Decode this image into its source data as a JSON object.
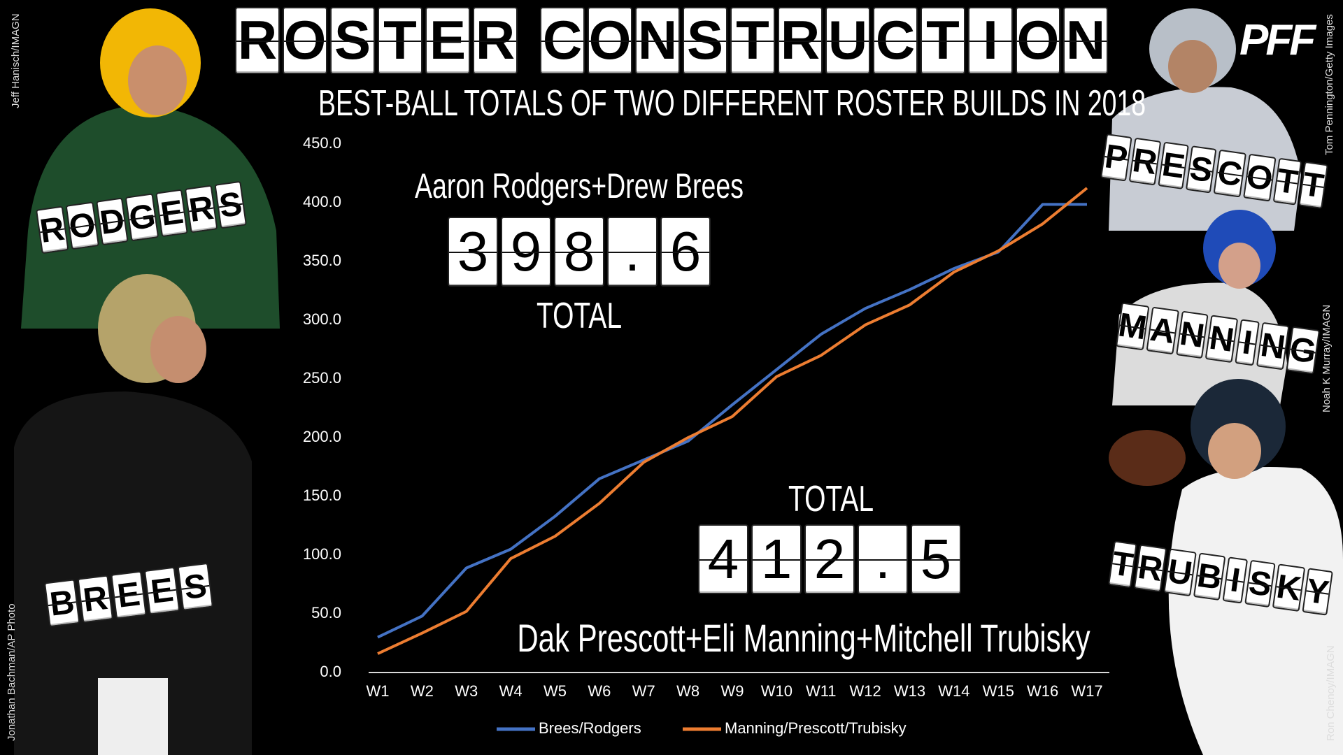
{
  "chart_data": {
    "type": "line",
    "title": "ROSTER CONSTRUCTION",
    "subtitle": "BEST-BALL TOTALS OF TWO DIFFERENT ROSTER BUILDS IN 2018",
    "categories": [
      "W1",
      "W2",
      "W3",
      "W4",
      "W5",
      "W6",
      "W7",
      "W8",
      "W9",
      "W10",
      "W11",
      "W12",
      "W13",
      "W14",
      "W15",
      "W16",
      "W17"
    ],
    "series": [
      {
        "name": "Brees/Rodgers",
        "color": "#4472c4",
        "values": [
          30,
          48,
          89,
          105,
          133,
          165,
          181,
          197,
          228,
          258,
          288,
          310,
          326,
          344,
          358,
          398.6,
          398.6
        ]
      },
      {
        "name": "Manning/Prescott/Trubisky",
        "color": "#ed7d31",
        "values": [
          16,
          33.5,
          52,
          97,
          116,
          144,
          179,
          200,
          218,
          252,
          270,
          296,
          313,
          341,
          359,
          382,
          412.5
        ]
      }
    ],
    "ylim": [
      0,
      450
    ],
    "yticks": [
      {
        "value": 0,
        "label": "0.0"
      },
      {
        "value": 50,
        "label": "50.0"
      },
      {
        "value": 100,
        "label": "100.0"
      },
      {
        "value": 150,
        "label": "150.0"
      },
      {
        "value": 200,
        "label": "200.0"
      },
      {
        "value": 250,
        "label": "250.0"
      },
      {
        "value": 300,
        "label": "300.0"
      },
      {
        "value": 350,
        "label": "350.0"
      },
      {
        "value": 400,
        "label": "400.0"
      },
      {
        "value": 450,
        "label": "450.0"
      }
    ],
    "grid": false,
    "legend": "bottom",
    "annotations": {
      "top_build": "Aaron Rodgers+Drew Brees",
      "top_total": "398.6",
      "top_total_label": "TOTAL",
      "bottom_total_label": "TOTAL",
      "bottom_total": "412.5",
      "bottom_build": "Dak Prescott+Eli Manning+Mitchell Trubisky"
    },
    "players": [
      "RODGERS",
      "BREES",
      "PRESCOTT",
      "MANNING",
      "TRUBISKY"
    ],
    "credits": [
      "Jeff Hanisch/IMAGN",
      "Jonathan Bachman/AP Photo",
      "Tom Pennington/Getty Images",
      "Noah K Murray/IMAGN",
      "Ron Chenoy/IMAGN"
    ],
    "logo": "PFF"
  }
}
